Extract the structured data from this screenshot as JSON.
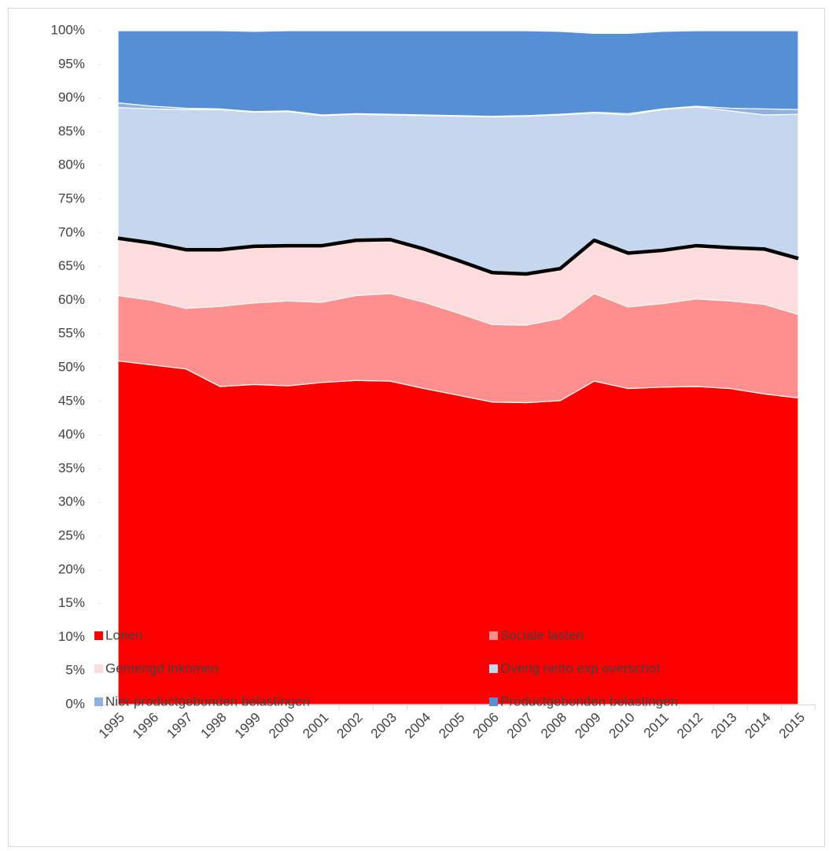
{
  "chart_data": {
    "type": "stacked_area",
    "categories": [
      "1995",
      "1996",
      "1997",
      "1998",
      "1999",
      "2000",
      "2001",
      "2002",
      "2003",
      "2004",
      "2005",
      "2006",
      "2007",
      "2008",
      "2009",
      "2010",
      "2011",
      "2012",
      "2013",
      "2014",
      "2015"
    ],
    "series": [
      {
        "name": "Lonen",
        "color": "#ff0000",
        "values": [
          51.0,
          50.4,
          49.8,
          47.2,
          47.5,
          47.3,
          47.8,
          48.1,
          48.0,
          46.9,
          45.9,
          44.9,
          44.8,
          45.1,
          48.0,
          46.9,
          47.1,
          47.2,
          46.9,
          46.1,
          45.5
        ]
      },
      {
        "name": "Sociale lasten",
        "color": "#ff8f8f",
        "values": [
          9.7,
          9.6,
          9.0,
          11.9,
          12.1,
          12.6,
          11.9,
          12.6,
          13.0,
          12.8,
          12.2,
          11.5,
          11.5,
          12.2,
          13.0,
          12.1,
          12.4,
          13.0,
          13.0,
          13.3,
          12.4
        ]
      },
      {
        "name": "Gemengd inkomen",
        "color": "#fcdcdc",
        "values": [
          8.5,
          8.5,
          8.7,
          8.4,
          8.4,
          8.2,
          8.4,
          8.2,
          8.0,
          7.9,
          7.8,
          7.7,
          7.6,
          7.4,
          7.9,
          8.0,
          7.9,
          7.9,
          7.9,
          8.2,
          8.3
        ]
      },
      {
        "name": "Overig netto exp overschot",
        "color": "#c5d6ee",
        "values": [
          19.4,
          19.9,
          20.8,
          20.8,
          19.9,
          19.9,
          19.3,
          18.7,
          18.5,
          19.8,
          21.4,
          23.1,
          23.4,
          22.8,
          18.9,
          20.5,
          20.9,
          20.6,
          20.3,
          19.9,
          21.4
        ]
      },
      {
        "name": "Niet-productgebonden belastingen",
        "color": "#8fb1e1",
        "values": [
          0.7,
          0.4,
          0.2,
          0.1,
          0.1,
          0.1,
          0.1,
          0.1,
          0.1,
          0.1,
          0.1,
          0.1,
          0.1,
          0.1,
          0.1,
          0.2,
          0.1,
          0.1,
          0.4,
          0.9,
          0.7
        ]
      },
      {
        "name": "Productgebonden belastingen",
        "color": "#5590d6",
        "values": [
          10.7,
          11.2,
          11.5,
          11.6,
          11.9,
          11.9,
          12.5,
          12.3,
          12.4,
          12.5,
          12.6,
          12.7,
          12.6,
          12.3,
          11.7,
          11.9,
          11.5,
          11.2,
          11.5,
          11.6,
          11.7
        ]
      }
    ],
    "ylim": [
      0,
      100
    ],
    "yticks": [
      {
        "value": 0,
        "label": "0%"
      },
      {
        "value": 5,
        "label": "5%"
      },
      {
        "value": 10,
        "label": "10%"
      },
      {
        "value": 15,
        "label": "15%"
      },
      {
        "value": 20,
        "label": "20%"
      },
      {
        "value": 25,
        "label": "25%"
      },
      {
        "value": 30,
        "label": "30%"
      },
      {
        "value": 35,
        "label": "35%"
      },
      {
        "value": 40,
        "label": "40%"
      },
      {
        "value": 45,
        "label": "45%"
      },
      {
        "value": 50,
        "label": "50%"
      },
      {
        "value": 55,
        "label": "55%"
      },
      {
        "value": 60,
        "label": "60%"
      },
      {
        "value": 65,
        "label": "65%"
      },
      {
        "value": 70,
        "label": "70%"
      },
      {
        "value": 75,
        "label": "75%"
      },
      {
        "value": 80,
        "label": "80%"
      },
      {
        "value": 85,
        "label": "85%"
      },
      {
        "value": 90,
        "label": "90%"
      },
      {
        "value": 95,
        "label": "95%"
      },
      {
        "value": 100,
        "label": "100%"
      }
    ],
    "legend": "bottom"
  }
}
